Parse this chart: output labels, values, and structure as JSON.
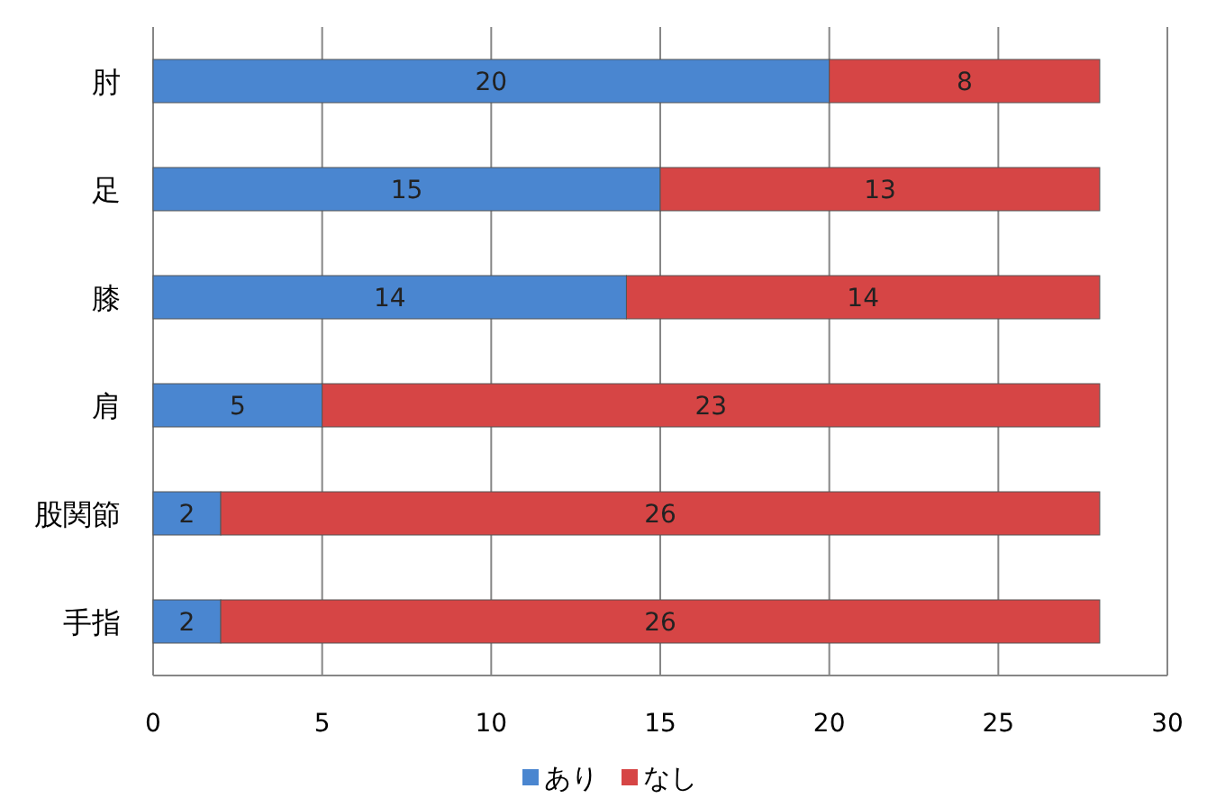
{
  "chart_data": {
    "type": "bar",
    "orientation": "horizontal",
    "stacked": true,
    "categories": [
      "肘",
      "足",
      "膝",
      "肩",
      "股関節",
      "手指"
    ],
    "series": [
      {
        "name": "あり",
        "color": "#4a86d0",
        "values": [
          20,
          15,
          14,
          5,
          2,
          2
        ]
      },
      {
        "name": "なし",
        "color": "#d64545",
        "values": [
          8,
          13,
          14,
          23,
          26,
          26
        ]
      }
    ],
    "xlim": [
      0,
      30
    ],
    "xticks": [
      0,
      5,
      10,
      15,
      20,
      25,
      30
    ],
    "grid": "x",
    "legend": "bottom",
    "data_labels": true
  }
}
